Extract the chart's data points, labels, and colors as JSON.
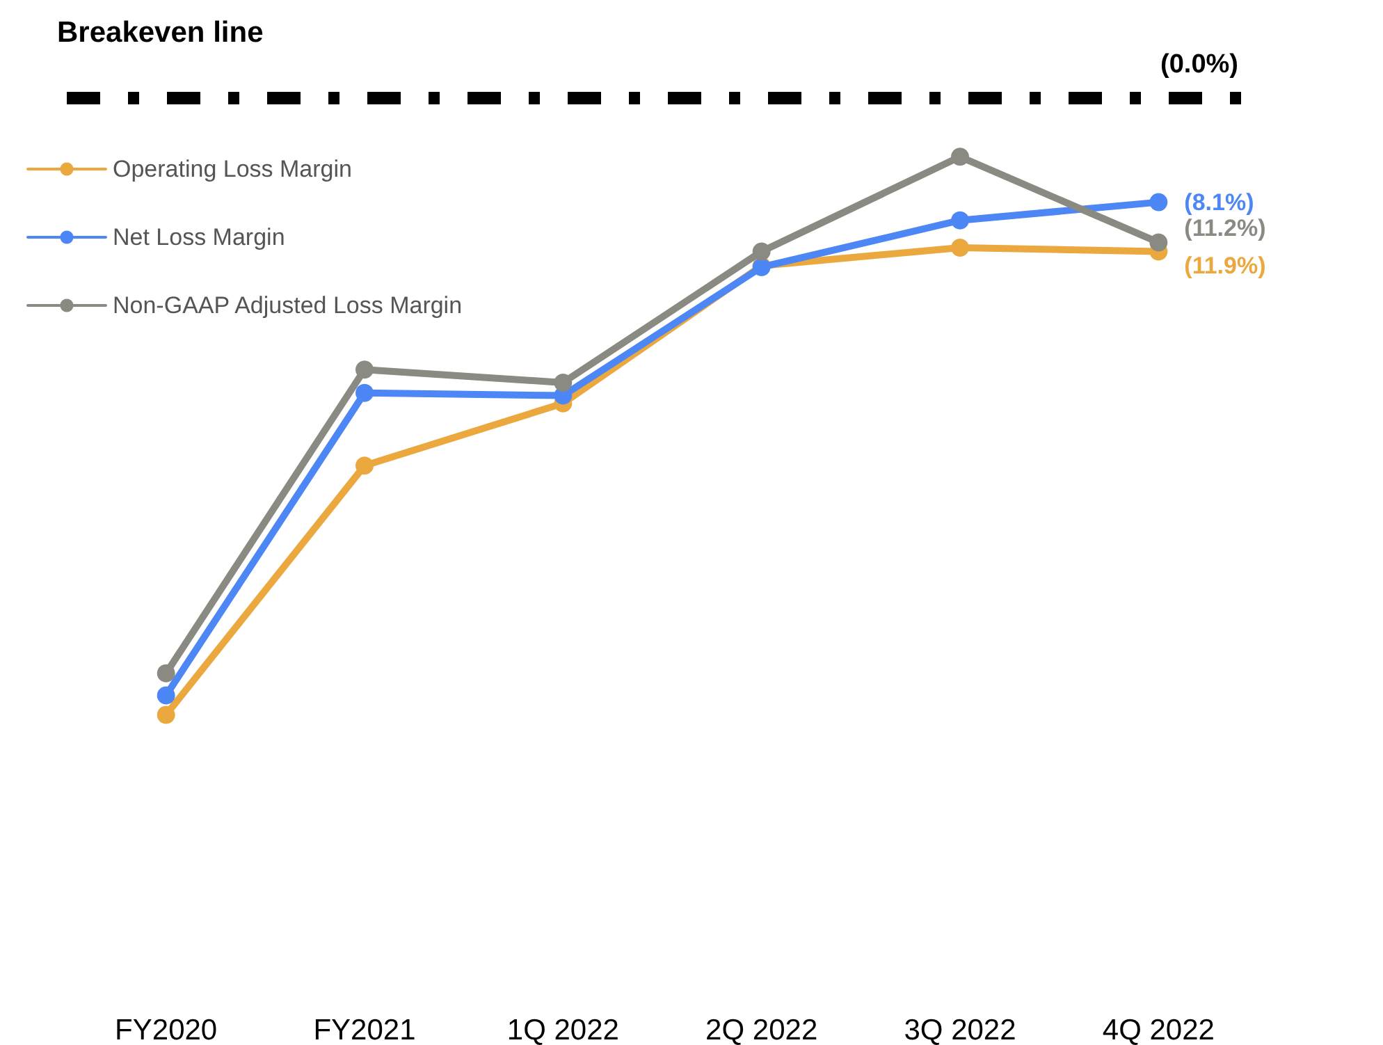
{
  "chart_data": {
    "type": "line",
    "title": "Breakeven line",
    "categories": [
      "FY2020",
      "FY2021",
      "1Q 2022",
      "2Q 2022",
      "3Q 2022",
      "4Q 2022"
    ],
    "series": [
      {
        "name": "Operating Loss Margin",
        "color": "#eba83e",
        "values": [
          -47.6,
          -28.4,
          -23.6,
          -13.0,
          -11.6,
          -11.9
        ],
        "value_labels": [
          null,
          null,
          null,
          null,
          null,
          "(11.9%)"
        ]
      },
      {
        "name": "Net Loss Margin",
        "color": "#4d86f5",
        "values": [
          -46.1,
          -22.8,
          -23.0,
          -13.1,
          -9.5,
          -8.1
        ],
        "value_labels": [
          null,
          null,
          null,
          null,
          null,
          "(8.1%)"
        ]
      },
      {
        "name": "Non-GAAP Adjusted Loss Margin",
        "color": "#8a8a82",
        "values": [
          -44.4,
          -21.0,
          -22.0,
          -11.9,
          -4.6,
          -11.2
        ],
        "value_labels": [
          null,
          null,
          null,
          null,
          null,
          "(11.2%)"
        ]
      }
    ],
    "ref_lines": [
      {
        "axis": "y",
        "value": 0,
        "label": "(0.0%)",
        "color": "#000000",
        "line_style": "dashed"
      }
    ],
    "tick_labels": "x",
    "grid": false,
    "legend": "top left",
    "marker": "circle",
    "line_style": "solid"
  }
}
